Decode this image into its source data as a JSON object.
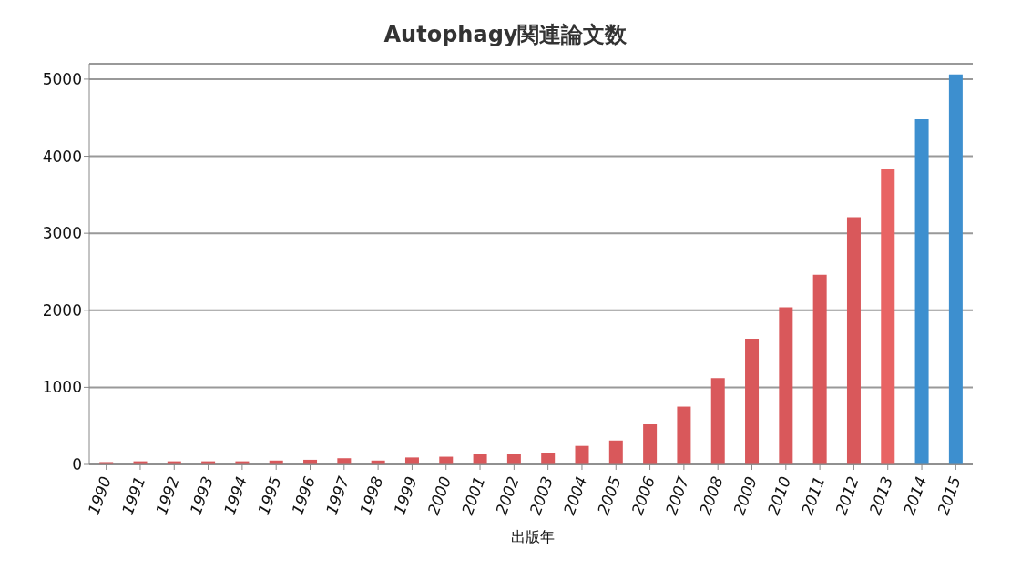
{
  "chart_data": {
    "type": "bar",
    "title": "Autophagy関連論文数",
    "xlabel": "出版年",
    "categories": [
      "1990",
      "1991",
      "1992",
      "1993",
      "1994",
      "1995",
      "1996",
      "1997",
      "1998",
      "1999",
      "2000",
      "2001",
      "2002",
      "2003",
      "2004",
      "2005",
      "2006",
      "2007",
      "2008",
      "2009",
      "2010",
      "2011",
      "2012",
      "2013",
      "2014",
      "2015"
    ],
    "values": [
      30,
      40,
      40,
      40,
      40,
      50,
      60,
      80,
      50,
      90,
      100,
      130,
      130,
      150,
      240,
      310,
      520,
      750,
      1120,
      1630,
      2040,
      2460,
      3210,
      3830,
      4480,
      5060
    ],
    "colors": [
      "#d9585b",
      "#d9585b",
      "#d9585b",
      "#d9585b",
      "#d9585b",
      "#d9585b",
      "#d9585b",
      "#d9585b",
      "#d9585b",
      "#d9585b",
      "#d9585b",
      "#d9585b",
      "#d9585b",
      "#d9585b",
      "#d9585b",
      "#d9585b",
      "#d9585b",
      "#d9585b",
      "#d9585b",
      "#d9585b",
      "#d9585b",
      "#d9585b",
      "#d9585b",
      "#e86464",
      "#3d8fcf",
      "#3d8fcf"
    ],
    "ylim": [
      0,
      5200
    ],
    "yticks": [
      0,
      1000,
      2000,
      3000,
      4000,
      5000
    ],
    "grid": "y"
  }
}
